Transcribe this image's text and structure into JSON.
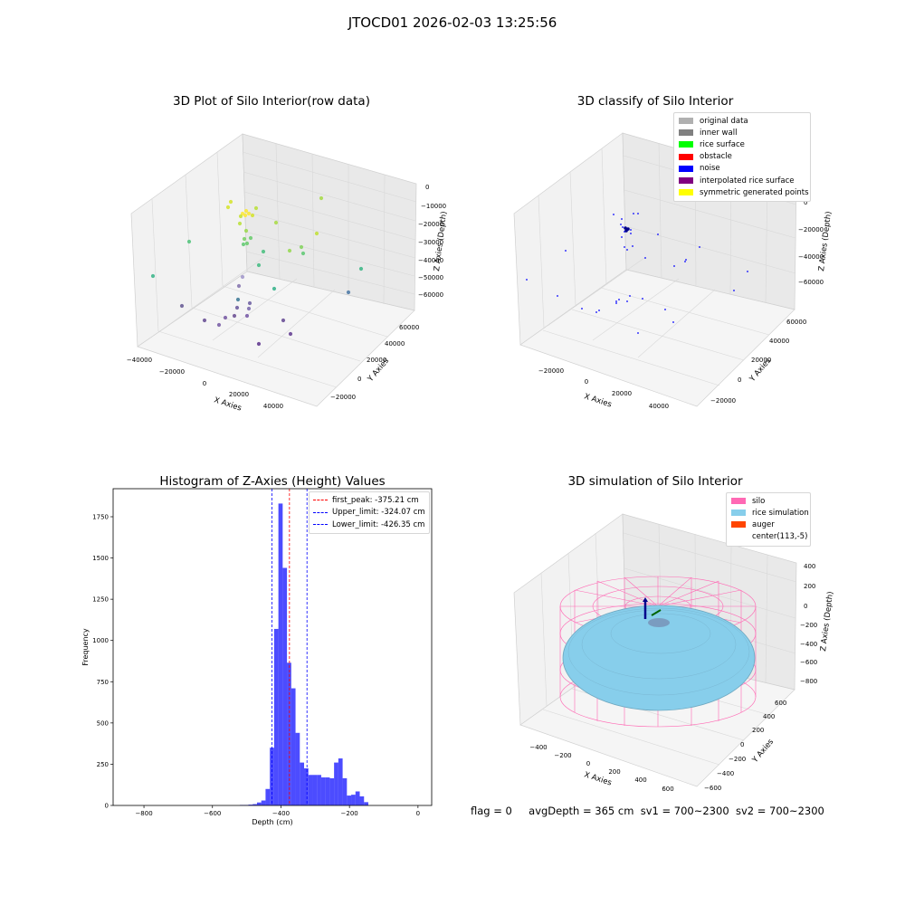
{
  "suptitle": "JTOCD01 2026-02-03 13:25:56",
  "panels": {
    "raw": {
      "title": "3D Plot of Silo Interior(row data)",
      "xlabel": "X Axies",
      "ylabel": "Y Axies",
      "zlabel": "Z Axies (Depth)",
      "x_ticks": [
        "−40000",
        "−20000",
        "0",
        "20000",
        "40000"
      ],
      "y_ticks": [
        "−20000",
        "0",
        "20000",
        "40000",
        "60000"
      ],
      "z_ticks": [
        "0",
        "−10000",
        "−20000",
        "−30000",
        "−40000",
        "−50000",
        "−60000"
      ]
    },
    "classify": {
      "title": "3D classify of Silo Interior",
      "xlabel": "X Axies",
      "ylabel": "Y Axies",
      "zlabel": "Z Axies (Depth)",
      "x_ticks": [
        "−20000",
        "0",
        "20000",
        "40000"
      ],
      "y_ticks": [
        "−20000",
        "0",
        "20000",
        "40000",
        "60000"
      ],
      "z_ticks": [
        "0",
        "−20000",
        "−40000",
        "−60000"
      ],
      "legend": [
        {
          "label": "original data",
          "color": "#b0b0b0"
        },
        {
          "label": "inner wall",
          "color": "#808080"
        },
        {
          "label": "rice surface",
          "color": "#00ff00"
        },
        {
          "label": "obstacle",
          "color": "#ff0000"
        },
        {
          "label": "noise",
          "color": "#0000ff"
        },
        {
          "label": "interpolated rice surface",
          "color": "#800080"
        },
        {
          "label": "symmetric generated points",
          "color": "#ffff00"
        }
      ]
    },
    "simulation": {
      "title": "3D simulation of Silo Interior",
      "xlabel": "X Axies",
      "ylabel": "Y Axies",
      "zlabel": "Z Axies (Depth)",
      "x_ticks": [
        "−400",
        "−200",
        "0",
        "200",
        "400",
        "600"
      ],
      "y_ticks": [
        "−600",
        "−400",
        "−200",
        "0",
        "200",
        "400",
        "600"
      ],
      "z_ticks": [
        "400",
        "200",
        "0",
        "−200",
        "−400",
        "−600",
        "−800"
      ],
      "legend": [
        {
          "label": "silo",
          "color": "#ff69b4"
        },
        {
          "label": "rice simulation",
          "color": "#87ceeb"
        },
        {
          "label": "auger",
          "color": "#ff4500"
        },
        {
          "label": "center(113,-5)",
          "color": ""
        }
      ]
    }
  },
  "chart_data": {
    "type": "bar",
    "title": "Histogram of Z-Axies (Height) Values",
    "xlabel": "Depth (cm)",
    "ylabel": "Frequency",
    "xlim": [
      -890,
      40
    ],
    "ylim": [
      0,
      1920
    ],
    "x_ticks": [
      -800,
      -600,
      -400,
      -200,
      0
    ],
    "x_tick_labels": [
      "−800",
      "−600",
      "−400",
      "−200",
      "0"
    ],
    "y_ticks": [
      0,
      250,
      500,
      750,
      1000,
      1250,
      1500,
      1750
    ],
    "y_tick_labels": [
      "0",
      "250",
      "500",
      "750",
      "1000",
      "1250",
      "1500",
      "1750"
    ],
    "bar_color": "#0000ff",
    "bin_start": -520,
    "bin_width": 12.5,
    "values": [
      3,
      3,
      5,
      8,
      18,
      30,
      100,
      350,
      1070,
      1830,
      1440,
      865,
      710,
      440,
      260,
      225,
      185,
      185,
      185,
      170,
      170,
      165,
      260,
      285,
      165,
      60,
      65,
      85,
      55,
      20
    ],
    "vlines": [
      {
        "label": "first_peak: -375.21 cm",
        "x": -375.21,
        "color": "#ff0000"
      },
      {
        "label": "Upper_limit: -324.07 cm",
        "x": -324.07,
        "color": "#0000ff"
      },
      {
        "label": "Lower_limit: -426.35 cm",
        "x": -426.35,
        "color": "#0000ff"
      }
    ],
    "legend_position": "upper right"
  },
  "footer": {
    "flag": "flag = 0",
    "avg": "avgDepth = 365 cm",
    "sv1": "sv1 = 700~2300",
    "sv2": "sv2 = 700~2300"
  }
}
